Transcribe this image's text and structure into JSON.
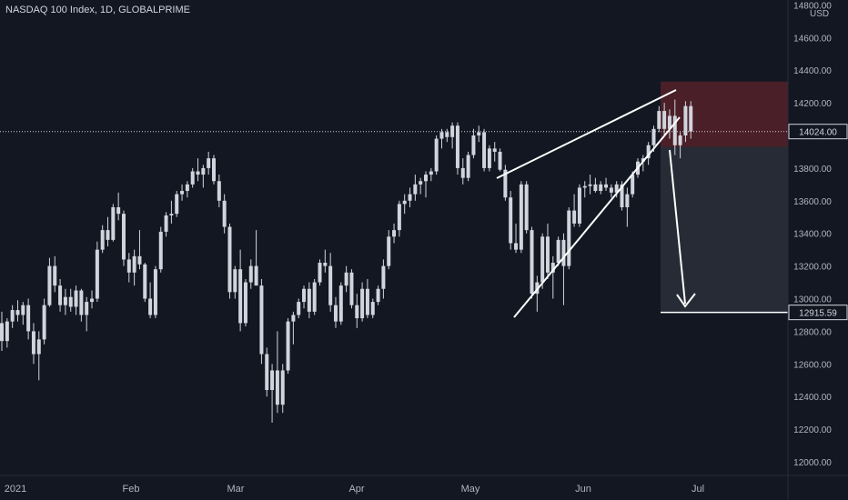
{
  "header": {
    "title": "NASDAQ 100 Index, 1D, GLOBALPRIME",
    "currency": "USD"
  },
  "colors": {
    "background": "#131722",
    "candle": "#d1d4dc",
    "axis_text": "#b2b5be",
    "stop_zone": "#4a1f28",
    "target_zone": "#272b36",
    "pattern_lines": "#ffffff"
  },
  "chart_data": {
    "type": "candlestick",
    "title": "NASDAQ 100 Index, 1D, GLOBALPRIME",
    "ylim": [
      11950,
      14800
    ],
    "y_ticks": [
      12000,
      12200,
      12400,
      12600,
      12800,
      13000,
      13200,
      13400,
      13600,
      13800,
      14200,
      14400,
      14600,
      14800
    ],
    "x_ticks": [
      "2021",
      "Feb",
      "Mar",
      "Apr",
      "May",
      "Jun",
      "Jul"
    ],
    "current_price": "14024.00",
    "target_price": "12915.59",
    "series": [
      {
        "values": [
          [
            12850,
            12920,
            12680,
            12740
          ],
          [
            12740,
            12880,
            12700,
            12860
          ],
          [
            12860,
            12960,
            12820,
            12930
          ],
          [
            12930,
            12990,
            12860,
            12900
          ],
          [
            12900,
            12980,
            12840,
            12960
          ],
          [
            12960,
            13000,
            12750,
            12800
          ],
          [
            12800,
            12850,
            12600,
            12660
          ],
          [
            12660,
            12800,
            12500,
            12750
          ],
          [
            12750,
            13000,
            12720,
            12960
          ],
          [
            12960,
            13250,
            12950,
            13200
          ],
          [
            13200,
            13260,
            13040,
            13080
          ],
          [
            13080,
            13120,
            12920,
            12960
          ],
          [
            12960,
            13060,
            12900,
            13010
          ],
          [
            13010,
            13060,
            12920,
            12950
          ],
          [
            12950,
            13080,
            12900,
            13050
          ],
          [
            13050,
            13060,
            12860,
            12900
          ],
          [
            12900,
            13010,
            12800,
            12980
          ],
          [
            12980,
            13050,
            12940,
            13000
          ],
          [
            13000,
            13350,
            12980,
            13300
          ],
          [
            13300,
            13450,
            13280,
            13420
          ],
          [
            13420,
            13500,
            13320,
            13360
          ],
          [
            13360,
            13580,
            13350,
            13560
          ],
          [
            13560,
            13650,
            13480,
            13520
          ],
          [
            13520,
            13540,
            13200,
            13240
          ],
          [
            13240,
            13280,
            13100,
            13160
          ],
          [
            13160,
            13300,
            13080,
            13260
          ],
          [
            13260,
            13420,
            13180,
            13210
          ],
          [
            13210,
            13220,
            12980,
            13000
          ],
          [
            13000,
            13100,
            12880,
            12900
          ],
          [
            12900,
            13200,
            12880,
            13180
          ],
          [
            13180,
            13440,
            13160,
            13410
          ],
          [
            13410,
            13530,
            13380,
            13510
          ],
          [
            13510,
            13600,
            13460,
            13520
          ],
          [
            13520,
            13660,
            13500,
            13640
          ],
          [
            13640,
            13700,
            13600,
            13660
          ],
          [
            13660,
            13720,
            13620,
            13700
          ],
          [
            13700,
            13800,
            13680,
            13780
          ],
          [
            13780,
            13860,
            13720,
            13760
          ],
          [
            13760,
            13820,
            13680,
            13800
          ],
          [
            13800,
            13900,
            13760,
            13860
          ],
          [
            13860,
            13880,
            13700,
            13720
          ],
          [
            13720,
            13760,
            13560,
            13600
          ],
          [
            13600,
            13640,
            13400,
            13440
          ],
          [
            13440,
            13460,
            13000,
            13040
          ],
          [
            13040,
            13200,
            13000,
            13180
          ],
          [
            13180,
            13300,
            12800,
            12850
          ],
          [
            12850,
            13120,
            12830,
            13100
          ],
          [
            13100,
            13240,
            13060,
            13200
          ],
          [
            13200,
            13420,
            13100,
            13080
          ],
          [
            13080,
            13120,
            12600,
            12660
          ],
          [
            12660,
            12700,
            12400,
            12440
          ],
          [
            12440,
            12600,
            12240,
            12560
          ],
          [
            12560,
            12800,
            12300,
            12350
          ],
          [
            12350,
            12600,
            12300,
            12560
          ],
          [
            12560,
            12880,
            12540,
            12860
          ],
          [
            12860,
            12920,
            12720,
            12900
          ],
          [
            12900,
            13000,
            12880,
            12980
          ],
          [
            12980,
            13080,
            12940,
            13060
          ],
          [
            13060,
            13100,
            12880,
            12920
          ],
          [
            12920,
            13120,
            12900,
            13100
          ],
          [
            13100,
            13240,
            13080,
            13220
          ],
          [
            13220,
            13300,
            13160,
            13200
          ],
          [
            13200,
            13280,
            12920,
            12960
          ],
          [
            12960,
            13010,
            12820,
            12860
          ],
          [
            12860,
            13100,
            12840,
            13080
          ],
          [
            13080,
            13200,
            13040,
            13160
          ],
          [
            13160,
            13180,
            12940,
            12960
          ],
          [
            12960,
            13030,
            12820,
            12880
          ],
          [
            12880,
            13100,
            12860,
            13060
          ],
          [
            13060,
            13120,
            12880,
            12900
          ],
          [
            12900,
            13000,
            12880,
            12980
          ],
          [
            12980,
            13080,
            12960,
            13060
          ],
          [
            13060,
            13240,
            13000,
            13200
          ],
          [
            13200,
            13420,
            13180,
            13380
          ],
          [
            13380,
            13460,
            13340,
            13420
          ],
          [
            13420,
            13600,
            13380,
            13580
          ],
          [
            13580,
            13640,
            13520,
            13600
          ],
          [
            13600,
            13680,
            13560,
            13640
          ],
          [
            13640,
            13760,
            13600,
            13700
          ],
          [
            13700,
            13740,
            13640,
            13720
          ],
          [
            13720,
            13780,
            13620,
            13760
          ],
          [
            13760,
            13800,
            13720,
            13780
          ],
          [
            13780,
            14000,
            13760,
            13980
          ],
          [
            13980,
            14040,
            13920,
            14020
          ],
          [
            14020,
            14040,
            13960,
            13990
          ],
          [
            13990,
            14080,
            13920,
            14060
          ],
          [
            14060,
            14080,
            13760,
            13800
          ],
          [
            13800,
            13860,
            13700,
            13740
          ],
          [
            13740,
            13900,
            13720,
            13880
          ],
          [
            13880,
            14040,
            13860,
            14000
          ],
          [
            14000,
            14060,
            13960,
            14020
          ],
          [
            14020,
            14040,
            13780,
            13800
          ],
          [
            13800,
            13940,
            13780,
            13920
          ],
          [
            13920,
            13960,
            13840,
            13900
          ],
          [
            13900,
            13920,
            13780,
            13790
          ],
          [
            13790,
            13820,
            13600,
            13620
          ],
          [
            13620,
            13660,
            13300,
            13340
          ],
          [
            13340,
            13460,
            13280,
            13300
          ],
          [
            13300,
            13720,
            13280,
            13700
          ],
          [
            13700,
            13720,
            13400,
            13420
          ],
          [
            13420,
            13440,
            13000,
            13030
          ],
          [
            13030,
            13140,
            12920,
            13100
          ],
          [
            13100,
            13400,
            13060,
            13380
          ],
          [
            13380,
            13460,
            13120,
            13160
          ],
          [
            13160,
            13260,
            13000,
            13220
          ],
          [
            13220,
            13380,
            13200,
            13360
          ],
          [
            13360,
            13400,
            12960,
            13200
          ],
          [
            13200,
            13560,
            13180,
            13540
          ],
          [
            13540,
            13640,
            13440,
            13460
          ],
          [
            13460,
            13700,
            13440,
            13680
          ],
          [
            13680,
            13720,
            13620,
            13690
          ],
          [
            13690,
            13760,
            13640,
            13700
          ],
          [
            13700,
            13740,
            13650,
            13660
          ],
          [
            13660,
            13720,
            13640,
            13700
          ],
          [
            13700,
            13740,
            13660,
            13680
          ],
          [
            13680,
            13700,
            13620,
            13650
          ],
          [
            13650,
            13720,
            13620,
            13700
          ],
          [
            13700,
            13720,
            13540,
            13560
          ],
          [
            13560,
            13680,
            13440,
            13640
          ],
          [
            13640,
            13780,
            13620,
            13760
          ],
          [
            13760,
            13860,
            13740,
            13840
          ],
          [
            13840,
            13880,
            13780,
            13860
          ],
          [
            13860,
            13960,
            13820,
            13940
          ],
          [
            13940,
            14060,
            13900,
            14040
          ],
          [
            14040,
            14180,
            14020,
            14150
          ],
          [
            14150,
            14200,
            14000,
            14040
          ],
          [
            14040,
            14160,
            13980,
            14120
          ],
          [
            14120,
            14220,
            13880,
            13940
          ],
          [
            13940,
            14020,
            13860,
            14000
          ],
          [
            14000,
            14210,
            13960,
            14180
          ],
          [
            14180,
            14210,
            13980,
            14024
          ]
        ]
      }
    ],
    "annotations": {
      "rising_wedge": "upper and lower converging trendlines",
      "stop_zone": [
        13930,
        14330
      ],
      "target_zone": [
        12915.59,
        13930
      ],
      "arrow": "down to target"
    }
  }
}
